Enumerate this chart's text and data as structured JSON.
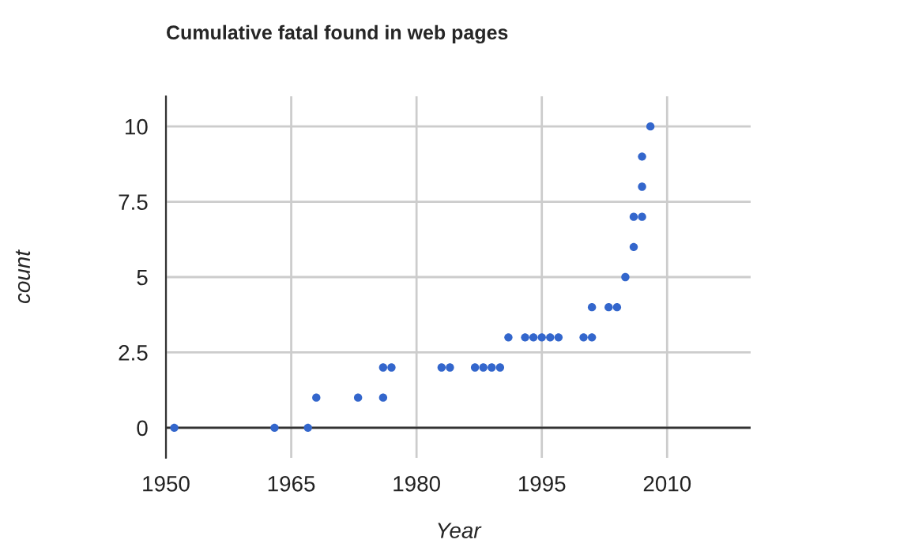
{
  "chart_data": {
    "type": "scatter",
    "title": "Cumulative fatal found in web pages",
    "xlabel": "Year",
    "ylabel": "count",
    "x": [
      1951,
      1963,
      1967,
      1968,
      1973,
      1976,
      1976,
      1977,
      1983,
      1984,
      1987,
      1988,
      1989,
      1990,
      1991,
      1993,
      1994,
      1995,
      1996,
      1997,
      2000,
      2001,
      2001,
      2003,
      2004,
      2005,
      2006,
      2006,
      2007,
      2007,
      2007,
      2008
    ],
    "series": [
      {
        "color": "#3366cc",
        "values": [
          0,
          0,
          0,
          1,
          1,
          1,
          2,
          2,
          2,
          2,
          2,
          2,
          2,
          2,
          3,
          3,
          3,
          3,
          3,
          3,
          3,
          3,
          4,
          4,
          4,
          5,
          6,
          7,
          7,
          8,
          9,
          10
        ]
      }
    ],
    "xlim": [
      1950,
      2020
    ],
    "xticks": [
      1950,
      1965,
      1980,
      1995,
      2010
    ],
    "ylim": [
      -1,
      11
    ],
    "yticks": [
      0,
      2.5,
      5,
      7.5,
      10
    ],
    "grid": true,
    "marker": "circle"
  }
}
